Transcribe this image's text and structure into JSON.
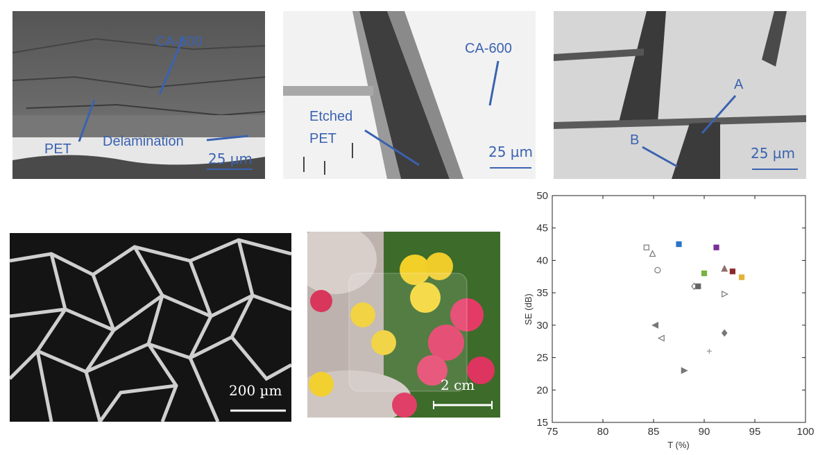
{
  "panels": {
    "p1": {
      "labels": [
        "CA-600",
        "PET",
        "Delamination"
      ],
      "scale": "25 µm"
    },
    "p2": {
      "labels": [
        "CA-600",
        "Etched",
        "PET"
      ],
      "scale": "25 µm"
    },
    "p3": {
      "labels": [
        "A",
        "B"
      ],
      "scale": "25 µm"
    },
    "p4": {
      "scale": "200 µm"
    },
    "p5": {
      "scale": "2 cm"
    }
  },
  "colors": {
    "annotation": "#3b62b0"
  },
  "chart_data": {
    "type": "scatter",
    "xlabel": "T (%)",
    "ylabel": "SE (dB)",
    "xlim": [
      75,
      100
    ],
    "ylim": [
      15,
      50
    ],
    "xticks": [
      75,
      80,
      85,
      90,
      95,
      100
    ],
    "yticks": [
      15,
      20,
      25,
      30,
      35,
      40,
      45,
      50
    ],
    "grid": false,
    "points": [
      {
        "x": 84.3,
        "y": 42.0,
        "marker": "square-open",
        "color": "#777777"
      },
      {
        "x": 84.9,
        "y": 41.0,
        "marker": "triangle-up-open",
        "color": "#777777"
      },
      {
        "x": 85.4,
        "y": 38.5,
        "marker": "circle-open",
        "color": "#777777"
      },
      {
        "x": 87.5,
        "y": 42.5,
        "marker": "square",
        "color": "#2b74c7"
      },
      {
        "x": 91.2,
        "y": 42.0,
        "marker": "square",
        "color": "#7b2f95"
      },
      {
        "x": 90.0,
        "y": 38.0,
        "marker": "square",
        "color": "#78b340"
      },
      {
        "x": 92.0,
        "y": 38.7,
        "marker": "triangle-up",
        "color": "#8c6f6f"
      },
      {
        "x": 92.8,
        "y": 38.3,
        "marker": "square",
        "color": "#8b2a2a"
      },
      {
        "x": 93.7,
        "y": 37.4,
        "marker": "square",
        "color": "#e0b53a"
      },
      {
        "x": 89.0,
        "y": 36.0,
        "marker": "diamond-open",
        "color": "#777777"
      },
      {
        "x": 89.4,
        "y": 36.0,
        "marker": "square",
        "color": "#666666"
      },
      {
        "x": 92.0,
        "y": 34.8,
        "marker": "triangle-right-open",
        "color": "#777777"
      },
      {
        "x": 85.2,
        "y": 30.0,
        "marker": "triangle-left",
        "color": "#777777"
      },
      {
        "x": 92.0,
        "y": 28.8,
        "marker": "diamond",
        "color": "#777777"
      },
      {
        "x": 85.8,
        "y": 28.0,
        "marker": "triangle-left-open",
        "color": "#777777"
      },
      {
        "x": 90.5,
        "y": 26.0,
        "marker": "plus",
        "color": "#999999"
      },
      {
        "x": 88.0,
        "y": 23.0,
        "marker": "triangle-right",
        "color": "#777777"
      }
    ]
  }
}
